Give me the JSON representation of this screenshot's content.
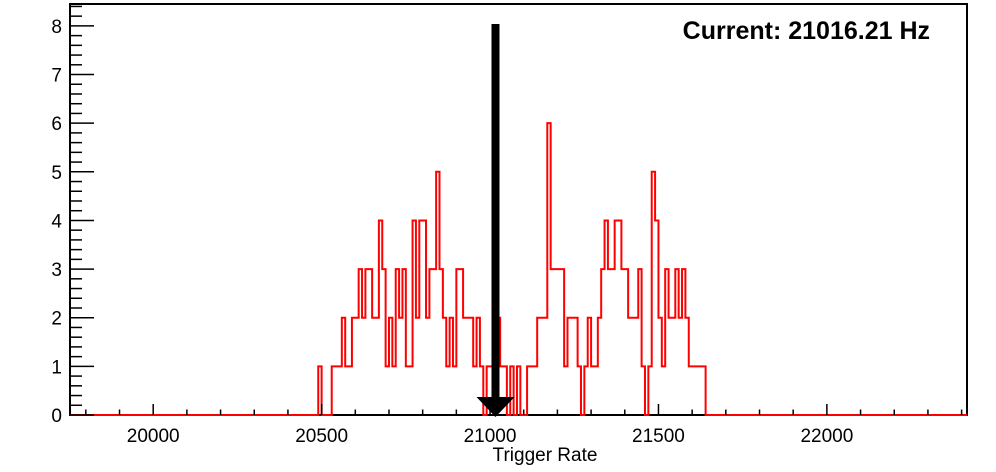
{
  "canvas": {
    "background": "#ffffff"
  },
  "annotation": {
    "current_label": "Current: 21016.21 Hz"
  },
  "colors": {
    "histogram": "#ff0000",
    "axis": "#000000",
    "arrow": "#000000",
    "text": "#000000"
  },
  "chart_data": {
    "type": "bar",
    "style": "root-outline-histogram",
    "title": "",
    "xlabel": "Trigger Rate",
    "ylabel": "",
    "xlim": [
      19753,
      22416
    ],
    "ylim": [
      0,
      8.45
    ],
    "grid": false,
    "legend": null,
    "x_major_ticks": [
      20000,
      20500,
      21000,
      21500,
      22000
    ],
    "x_major_tick_labels": [
      "20000",
      "20500",
      "21000",
      "21500",
      "22000"
    ],
    "x_minor_tick_step": 100,
    "y_major_ticks": [
      0,
      1,
      2,
      3,
      4,
      5,
      6,
      7,
      8
    ],
    "y_major_tick_labels": [
      "0",
      "1",
      "2",
      "3",
      "4",
      "5",
      "6",
      "7",
      "8"
    ],
    "y_minor_tick_step": 0.2,
    "bins": {
      "start": 20490,
      "width": 10,
      "values": [
        1,
        0,
        0,
        0,
        1,
        1,
        1,
        2,
        1,
        1,
        2,
        2,
        3,
        2,
        3,
        3,
        2,
        2,
        4,
        3,
        1,
        2,
        1,
        3,
        2,
        3,
        1,
        1,
        4,
        2,
        4,
        4,
        2,
        3,
        3,
        5,
        3,
        2,
        1,
        2,
        1,
        3,
        3,
        2,
        2,
        2,
        1,
        2,
        1,
        0,
        1,
        1,
        1,
        2,
        1,
        1,
        0,
        1,
        0,
        1,
        0,
        0,
        1,
        1,
        1,
        2,
        2,
        2,
        6,
        3,
        3,
        3,
        3,
        1,
        2,
        2,
        2,
        1,
        0,
        1,
        2,
        1,
        1,
        2,
        3,
        4,
        3,
        3,
        4,
        4,
        3,
        3,
        2,
        2,
        2,
        3,
        1,
        0,
        1,
        5,
        4,
        2,
        1,
        3,
        2,
        2,
        3,
        2,
        3,
        2,
        1,
        1,
        1,
        1,
        1
      ]
    },
    "arrow": {
      "x": 21016.21
    }
  }
}
